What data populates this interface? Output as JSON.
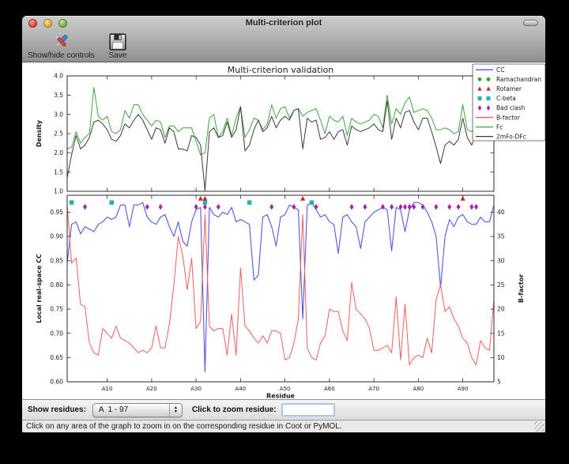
{
  "window": {
    "title": "Multi-criterion plot"
  },
  "toolbar": {
    "show_hide_label": "Show/hide controls",
    "save_label": "Save"
  },
  "controls": {
    "show_residues_label": "Show residues:",
    "residue_range_value": "A  1 - 97",
    "zoom_label": "Click to zoom residue:",
    "zoom_input_value": ""
  },
  "status": {
    "message": "Click on any area of the graph to zoom in on the corresponding residue in Coot or PyMOL."
  },
  "legend": {
    "entries": [
      {
        "label": "CC",
        "sample": "line",
        "color": "#5555e8"
      },
      {
        "label": "Ramachandran",
        "sample": "circle",
        "color": "#1faa1f"
      },
      {
        "label": "Rotamer",
        "sample": "triangle",
        "color": "#cc2222"
      },
      {
        "label": "C-beta",
        "sample": "square",
        "color": "#1fb4b4"
      },
      {
        "label": "Bad clash",
        "sample": "diamond",
        "color": "#aa22aa"
      },
      {
        "label": "B-factor",
        "sample": "line",
        "color": "#f25c5c"
      },
      {
        "label": "Fc",
        "sample": "line",
        "color": "#3ca83c"
      },
      {
        "label": "2mFo-DFc",
        "sample": "line",
        "color": "#3a3a3a"
      }
    ]
  },
  "chart_data": [
    {
      "type": "line",
      "title": "Multi-criterion validation",
      "ylabel": "Density",
      "ylim": [
        1.0,
        4.0
      ],
      "ytick_values": [
        1.0,
        1.5,
        2.0,
        2.5,
        3.0,
        3.5,
        4.0
      ],
      "ytick_labels": [
        "1.0",
        "1.5",
        "2.0",
        "2.5",
        "3.0",
        "3.5",
        "4.0"
      ],
      "x_range": [
        1,
        97
      ],
      "series": [
        {
          "name": "Fc",
          "color": "#3ca83c",
          "values": [
            2.1,
            2.15,
            2.55,
            2.25,
            2.4,
            2.5,
            3.7,
            2.95,
            2.85,
            2.95,
            2.55,
            2.5,
            2.6,
            3.1,
            2.9,
            3.25,
            3.25,
            3.0,
            2.85,
            2.7,
            2.85,
            2.8,
            2.4,
            2.7,
            2.7,
            2.55,
            2.65,
            2.65,
            2.65,
            2.3,
            1.95,
            2.0,
            2.9,
            3.0,
            2.4,
            2.55,
            2.9,
            2.45,
            2.9,
            3.2,
            2.4,
            2.6,
            2.9,
            2.85,
            2.6,
            2.75,
            3.25,
            2.9,
            3.15,
            3.2,
            2.9,
            3.1,
            3.15,
            2.95,
            3.05,
            3.1,
            3.15,
            2.85,
            2.5,
            2.95,
            2.85,
            2.8,
            2.95,
            2.45,
            2.9,
            2.8,
            2.75,
            2.8,
            2.85,
            3.0,
            2.95,
            2.65,
            3.5,
            2.75,
            3.15,
            3.0,
            3.3,
            3.45,
            3.05,
            3.1,
            3.15,
            3.1,
            2.9,
            2.6,
            2.6,
            2.65,
            2.6,
            2.5,
            2.55,
            3.25,
            2.6,
            2.55,
            2.7,
            2.6,
            2.7,
            3.0,
            3.5
          ]
        },
        {
          "name": "2mFo-DFc",
          "color": "#3a3a3a",
          "values": [
            1.35,
            1.95,
            2.45,
            2.1,
            2.2,
            2.4,
            2.8,
            2.85,
            2.75,
            2.6,
            2.35,
            2.3,
            2.45,
            2.75,
            2.65,
            2.85,
            3.0,
            2.85,
            2.6,
            2.35,
            2.65,
            2.6,
            2.25,
            2.65,
            2.55,
            2.1,
            2.1,
            2.05,
            2.45,
            2.4,
            2.2,
            1.02,
            2.55,
            2.65,
            2.4,
            2.45,
            2.8,
            2.4,
            2.6,
            3.2,
            2.05,
            2.2,
            2.6,
            2.85,
            2.55,
            2.65,
            2.95,
            2.65,
            2.85,
            2.95,
            2.85,
            3.1,
            3.15,
            2.1,
            2.9,
            2.8,
            2.85,
            2.35,
            2.4,
            2.55,
            2.35,
            2.55,
            2.6,
            2.2,
            2.7,
            2.6,
            2.55,
            2.6,
            2.65,
            2.75,
            2.6,
            2.55,
            3.35,
            2.35,
            2.9,
            2.65,
            3.05,
            3.1,
            2.8,
            2.6,
            2.9,
            2.9,
            2.55,
            2.15,
            1.72,
            2.2,
            2.3,
            2.2,
            2.35,
            2.9,
            2.4,
            2.2,
            2.5,
            2.4,
            2.55,
            3.1,
            3.1
          ]
        }
      ]
    },
    {
      "type": "line+scatter",
      "xlabel": "Residue",
      "x_range": [
        1,
        97
      ],
      "xtick_values": [
        10,
        20,
        30,
        40,
        50,
        60,
        70,
        80,
        90
      ],
      "xtick_labels": [
        "A10",
        "A20",
        "A30",
        "A40",
        "A50",
        "A60",
        "A70",
        "A80",
        "A90"
      ],
      "left": {
        "ylabel": "Local real-space CC",
        "ylim": [
          0.6,
          0.985
        ],
        "ytick_values": [
          0.6,
          0.65,
          0.7,
          0.75,
          0.8,
          0.85,
          0.9,
          0.95
        ],
        "ytick_labels": [
          "0.60",
          "0.65",
          "0.70",
          "0.75",
          "0.80",
          "0.85",
          "0.90",
          "0.95"
        ]
      },
      "right": {
        "ylabel": "B-factor",
        "ylim": [
          5,
          43.5
        ],
        "ytick_values": [
          5,
          10,
          15,
          20,
          25,
          30,
          35,
          40
        ],
        "ytick_labels": [
          "5",
          "10",
          "15",
          "20",
          "25",
          "30",
          "35",
          "40"
        ]
      },
      "series": [
        {
          "name": "CC",
          "axis": "left",
          "color": "#5555e8",
          "values": [
            0.845,
            0.925,
            0.93,
            0.905,
            0.92,
            0.915,
            0.91,
            0.925,
            0.93,
            0.94,
            0.935,
            0.94,
            0.965,
            0.965,
            0.92,
            0.965,
            0.965,
            0.97,
            0.94,
            0.93,
            0.925,
            0.94,
            0.945,
            0.92,
            0.9,
            0.93,
            0.89,
            0.88,
            0.93,
            0.955,
            0.96,
            0.62,
            0.96,
            0.945,
            0.94,
            0.95,
            0.945,
            0.96,
            0.93,
            0.935,
            0.93,
            0.925,
            0.81,
            0.82,
            0.94,
            0.945,
            0.92,
            0.88,
            0.94,
            0.945,
            0.965,
            0.96,
            0.955,
            0.73,
            0.965,
            0.97,
            0.955,
            0.94,
            0.945,
            0.93,
            0.925,
            0.865,
            0.94,
            0.945,
            0.93,
            0.92,
            0.875,
            0.93,
            0.94,
            0.95,
            0.955,
            0.96,
            0.955,
            0.87,
            0.96,
            0.955,
            0.91,
            0.955,
            0.97,
            0.97,
            0.965,
            0.95,
            0.93,
            0.9,
            0.795,
            0.9,
            0.935,
            0.92,
            0.94,
            0.945,
            0.93,
            0.925,
            0.925,
            0.94,
            0.93,
            0.93,
            0.965
          ]
        },
        {
          "name": "B-factor",
          "axis": "right",
          "color": "#f25c5c",
          "values": [
            41.5,
            29.5,
            30.5,
            21.0,
            20.5,
            13.0,
            11.0,
            10.5,
            16.0,
            15.0,
            14.0,
            16.5,
            14.0,
            13.5,
            13.0,
            12.0,
            11.0,
            11.5,
            11.0,
            12.0,
            16.5,
            12.0,
            12.0,
            17.0,
            25.0,
            35.0,
            31.0,
            24.0,
            30.5,
            16.0,
            17.5,
            39.5,
            16.5,
            15.5,
            16.0,
            16.0,
            10.5,
            19.0,
            10.5,
            28.5,
            16.5,
            15.5,
            14.0,
            13.0,
            14.5,
            13.0,
            15.5,
            15.5,
            15.0,
            9.5,
            10.0,
            13.0,
            18.0,
            39.5,
            12.0,
            10.0,
            9.5,
            13.0,
            14.5,
            20.0,
            19.5,
            19.5,
            15.5,
            13.5,
            25.5,
            20.0,
            19.0,
            18.0,
            16.0,
            11.5,
            11.5,
            12.0,
            12.5,
            11.0,
            22.5,
            9.5,
            21.0,
            8.5,
            10.0,
            10.5,
            10.0,
            14.0,
            11.0,
            22.0,
            25.0,
            19.5,
            20.5,
            18.0,
            16.5,
            14.0,
            13.0,
            10.0,
            8.5,
            13.5,
            12.0,
            11.5,
            22.0
          ]
        }
      ],
      "outlier_markers": [
        {
          "name": "Ramachandran",
          "shape": "circle",
          "color": "#1faa1f",
          "y": 0.978,
          "residues": []
        },
        {
          "name": "Rotamer",
          "shape": "triangle",
          "color": "#cc2222",
          "y": 0.978,
          "residues": [
            31,
            32,
            54,
            90
          ]
        },
        {
          "name": "C-beta",
          "shape": "square",
          "color": "#1fb4b4",
          "y": 0.97,
          "residues": [
            2,
            11,
            32,
            42,
            56
          ]
        },
        {
          "name": "Bad clash",
          "shape": "diamond",
          "color": "#aa22aa",
          "y": 0.961,
          "residues": [
            5,
            19,
            22,
            30,
            32,
            35,
            47,
            52,
            57,
            65,
            68,
            72,
            74,
            76,
            77,
            78,
            79,
            81,
            84,
            87,
            89,
            92,
            93
          ]
        }
      ]
    }
  ]
}
